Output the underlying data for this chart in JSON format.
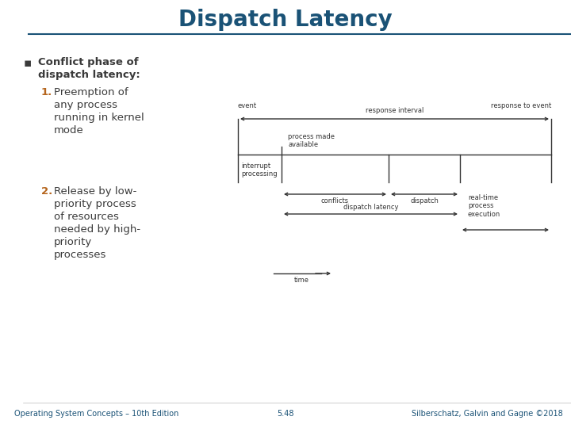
{
  "title": "Dispatch Latency",
  "title_color": "#1a5276",
  "title_fontsize": 20,
  "bg_color": "#ffffff",
  "sidebar_color": "#5b9bd5",
  "sidebar_light_color": "#aed6f1",
  "header_line_color": "#1a5276",
  "bullet_text": "Conflict phase of\ndispatch latency:",
  "bullet_color": "#3a3a3a",
  "bullet_marker_color": "#3a3a3a",
  "item1_num": "1.",
  "item1_text": "Preemption of\nany process\nrunning in kernel\nmode",
  "item1_num_color": "#b5651d",
  "item1_text_color": "#3a3a3a",
  "item2_num": "2.",
  "item2_text": "Release by low-\npriority process\nof resources\nneeded by high-\npriority\nprocesses",
  "item2_num_color": "#b5651d",
  "item2_text_color": "#3a3a3a",
  "footer_left": "Operating System Concepts – 10th Edition",
  "footer_center": "5.48",
  "footer_right": "Silberschatz, Galvin and Gagne ©2018",
  "footer_color": "#1a5276",
  "footer_fontsize": 7,
  "diagram": {
    "event": "event",
    "response_to_event": "response to event",
    "response_interval": "response interval",
    "process_made_available": "process made\navailable",
    "interrupt_processing": "interrupt\nprocessing",
    "dispatch_latency": "dispatch latency",
    "conflicts": "conflicts",
    "dispatch": "dispatch",
    "real_time_process_execution": "real-time\nprocess\nexecution",
    "time": "time"
  },
  "dc": "#333333",
  "fs": 6.0
}
